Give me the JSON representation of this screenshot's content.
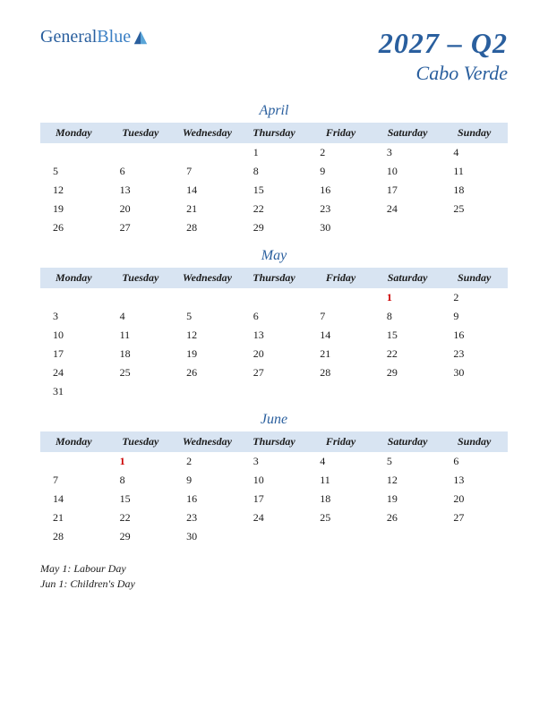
{
  "logo": {
    "text1": "General",
    "text2": "Blue",
    "color1": "#2a5f9e",
    "color2": "#3a7fc4"
  },
  "title": {
    "quarter": "2027 – Q2",
    "country": "Cabo Verde",
    "color": "#2a5f9e"
  },
  "header_bg": "#d8e4f2",
  "holiday_color": "#cc0000",
  "day_headers": [
    "Monday",
    "Tuesday",
    "Wednesday",
    "Thursday",
    "Friday",
    "Saturday",
    "Sunday"
  ],
  "months": [
    {
      "name": "April",
      "weeks": [
        [
          "",
          "",
          "",
          "1",
          "2",
          "3",
          "4"
        ],
        [
          "5",
          "6",
          "7",
          "8",
          "9",
          "10",
          "11"
        ],
        [
          "12",
          "13",
          "14",
          "15",
          "16",
          "17",
          "18"
        ],
        [
          "19",
          "20",
          "21",
          "22",
          "23",
          "24",
          "25"
        ],
        [
          "26",
          "27",
          "28",
          "29",
          "30",
          "",
          ""
        ]
      ],
      "holidays": []
    },
    {
      "name": "May",
      "weeks": [
        [
          "",
          "",
          "",
          "",
          "",
          "1",
          "2"
        ],
        [
          "3",
          "4",
          "5",
          "6",
          "7",
          "8",
          "9"
        ],
        [
          "10",
          "11",
          "12",
          "13",
          "14",
          "15",
          "16"
        ],
        [
          "17",
          "18",
          "19",
          "20",
          "21",
          "22",
          "23"
        ],
        [
          "24",
          "25",
          "26",
          "27",
          "28",
          "29",
          "30"
        ],
        [
          "31",
          "",
          "",
          "",
          "",
          "",
          ""
        ]
      ],
      "holidays": [
        "1"
      ]
    },
    {
      "name": "June",
      "weeks": [
        [
          "",
          "1",
          "2",
          "3",
          "4",
          "5",
          "6"
        ],
        [
          "7",
          "8",
          "9",
          "10",
          "11",
          "12",
          "13"
        ],
        [
          "14",
          "15",
          "16",
          "17",
          "18",
          "19",
          "20"
        ],
        [
          "21",
          "22",
          "23",
          "24",
          "25",
          "26",
          "27"
        ],
        [
          "28",
          "29",
          "30",
          "",
          "",
          "",
          ""
        ]
      ],
      "holidays": [
        "1"
      ]
    }
  ],
  "holiday_list": [
    "May 1: Labour Day",
    "Jun 1: Children's Day"
  ]
}
